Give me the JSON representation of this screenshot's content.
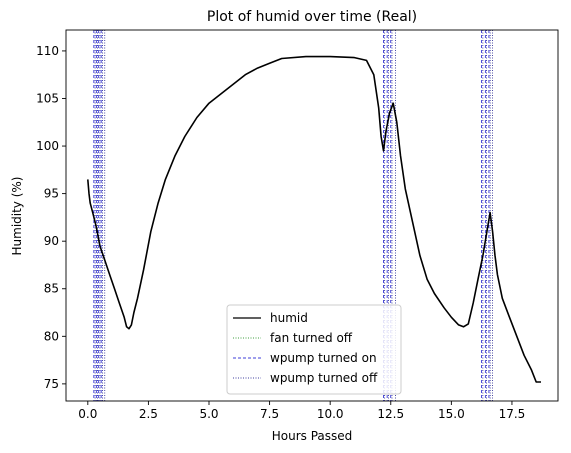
{
  "chart_data": {
    "type": "line",
    "title": "Plot of humid over time (Real)",
    "xlabel": "Hours Passed",
    "ylabel": "Humidity (%)",
    "xlim": [
      -0.9,
      19.4
    ],
    "ylim": [
      73.2,
      112.2
    ],
    "xticks": [
      0.0,
      2.5,
      5.0,
      7.5,
      10.0,
      12.5,
      15.0,
      17.5
    ],
    "xtick_labels": [
      "0.0",
      "2.5",
      "5.0",
      "7.5",
      "10.0",
      "12.5",
      "15.0",
      "17.5"
    ],
    "yticks": [
      75,
      80,
      85,
      90,
      95,
      100,
      105,
      110
    ],
    "ytick_labels": [
      "75",
      "80",
      "85",
      "90",
      "95",
      "100",
      "105",
      "110"
    ],
    "grid": false,
    "legend_position": "lower-center",
    "legend": [
      {
        "label": "humid",
        "color": "#000000",
        "style": "solid"
      },
      {
        "label": "fan turned off",
        "color": "#008000",
        "style": "dotted"
      },
      {
        "label": "wpump turned on",
        "color": "#0000cc",
        "style": "dashed"
      },
      {
        "label": "wpump turned off",
        "color": "#000080",
        "style": "dotted"
      }
    ],
    "series": [
      {
        "name": "humid",
        "color": "#000000",
        "x": [
          0.0,
          0.05,
          0.1,
          0.2,
          0.35,
          0.5,
          0.7,
          0.9,
          1.1,
          1.3,
          1.5,
          1.6,
          1.7,
          1.8,
          1.9,
          2.05,
          2.3,
          2.6,
          2.9,
          3.2,
          3.6,
          4.0,
          4.5,
          5.0,
          5.5,
          6.0,
          6.5,
          7.0,
          7.5,
          8.0,
          9.0,
          10.0,
          11.0,
          11.5,
          11.8,
          12.0,
          12.1,
          12.2,
          12.3,
          12.45,
          12.6,
          12.75,
          12.9,
          13.1,
          13.4,
          13.7,
          14.0,
          14.3,
          14.7,
          15.0,
          15.3,
          15.5,
          15.7,
          15.9,
          16.1,
          16.3,
          16.5,
          16.6,
          16.7,
          16.8,
          16.9,
          17.1,
          17.4,
          17.7,
          18.0,
          18.3,
          18.5,
          18.7
        ],
        "y": [
          96.5,
          95.0,
          94.0,
          93.0,
          91.5,
          89.5,
          88.0,
          86.5,
          85.0,
          83.5,
          82.0,
          81.0,
          80.8,
          81.2,
          82.5,
          84.0,
          87.0,
          91.0,
          94.0,
          96.5,
          99.0,
          101.0,
          103.0,
          104.5,
          105.5,
          106.5,
          107.5,
          108.2,
          108.7,
          109.2,
          109.4,
          109.4,
          109.3,
          109.0,
          107.5,
          104.0,
          101.0,
          99.5,
          101.5,
          103.5,
          104.5,
          102.5,
          99.0,
          95.5,
          92.0,
          88.5,
          86.0,
          84.5,
          83.0,
          82.0,
          81.2,
          81.0,
          81.3,
          83.5,
          86.0,
          88.5,
          91.5,
          93.0,
          91.0,
          88.5,
          86.5,
          84.0,
          82.0,
          80.0,
          78.0,
          76.5,
          75.2,
          75.2
        ]
      },
      {
        "name": "wpump turned on",
        "color": "#0000cc",
        "style": "dashed",
        "x": [
          0.25,
          0.35,
          0.45,
          0.55,
          12.2,
          12.35,
          12.5,
          16.25,
          16.4,
          16.55
        ]
      },
      {
        "name": "wpump turned off",
        "color": "#000080",
        "style": "dotted",
        "x": [
          0.3,
          0.4,
          0.5,
          0.6,
          0.7,
          12.25,
          12.4,
          12.55,
          12.7,
          16.3,
          16.45,
          16.6,
          16.7
        ]
      },
      {
        "name": "fan turned off",
        "color": "#008000",
        "style": "dotted",
        "x": []
      }
    ]
  }
}
